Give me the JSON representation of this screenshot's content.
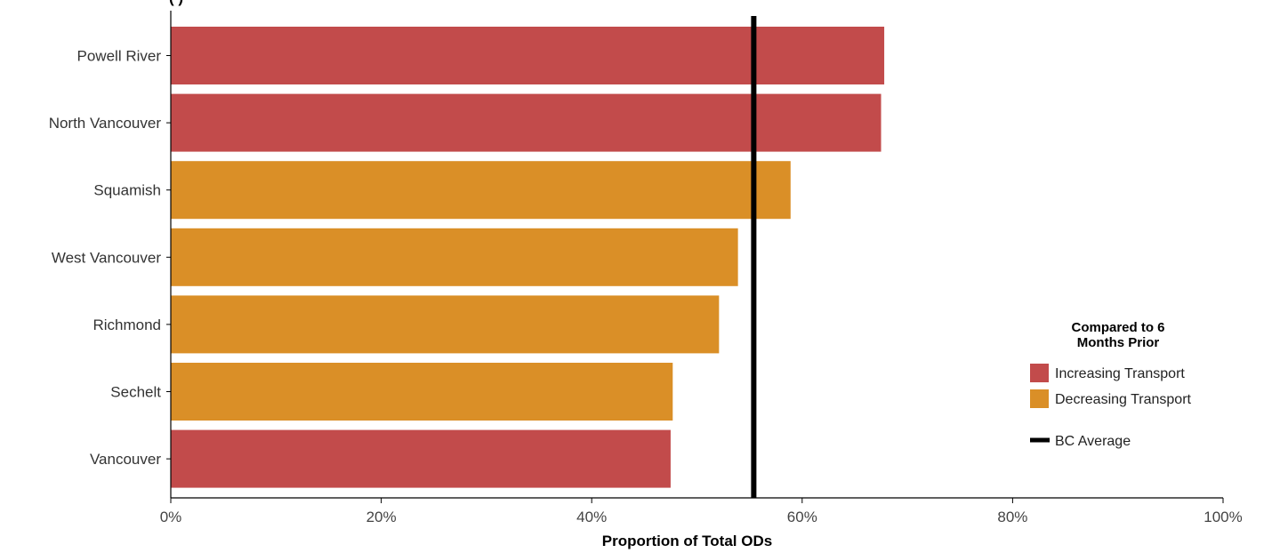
{
  "chart_data": {
    "type": "bar",
    "orientation": "horizontal",
    "title": "(                )",
    "categories": [
      "Powell River",
      "North Vancouver",
      "Squamish",
      "West Vancouver",
      "Richmond",
      "Sechelt",
      "Vancouver"
    ],
    "values": [
      67.8,
      67.5,
      58.9,
      53.9,
      52.1,
      47.7,
      47.5
    ],
    "bar_groups": [
      "Increasing Transport",
      "Increasing Transport",
      "Decreasing Transport",
      "Decreasing Transport",
      "Decreasing Transport",
      "Decreasing Transport",
      "Increasing Transport"
    ],
    "xlabel": "Proportion of Total ODs",
    "ylabel": "",
    "xlim": [
      0,
      100
    ],
    "x_ticks": [
      0,
      20,
      40,
      60,
      80,
      100
    ],
    "x_tick_labels": [
      "0%",
      "20%",
      "40%",
      "60%",
      "80%",
      "100%"
    ],
    "reference_line": {
      "name": "BC Average",
      "value": 55.4,
      "color": "#000000"
    },
    "grid": false,
    "legend": {
      "title": "Compared to 6 Months Prior",
      "title_lines": [
        "Compared to 6",
        "Months Prior"
      ],
      "placement": "right",
      "items": [
        {
          "label": "Increasing Transport",
          "color": "#c24b4b"
        },
        {
          "label": "Decreasing Transport",
          "color": "#da8f27"
        }
      ],
      "line_item": {
        "label": "BC Average",
        "color": "#000000"
      }
    },
    "colors": {
      "Increasing Transport": "#c24b4b",
      "Decreasing Transport": "#da8f27"
    }
  }
}
